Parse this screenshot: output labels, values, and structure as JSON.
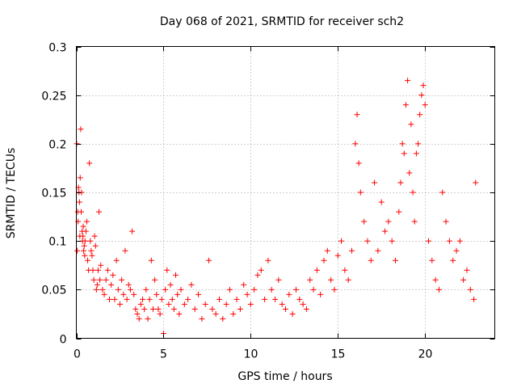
{
  "chart_data": {
    "type": "scatter",
    "title": "Day 068 of 2021, SRMTID for receiver sch2",
    "xlabel": "GPS time / hours",
    "ylabel": "SRMTID / TECUs",
    "xlim": [
      0,
      24
    ],
    "ylim": [
      0,
      0.3
    ],
    "xticks": [
      0,
      5,
      10,
      15,
      20
    ],
    "yticks": [
      0,
      0.05,
      0.1,
      0.15,
      0.2,
      0.25,
      0.3
    ],
    "xtick_labels": [
      "0",
      "5",
      "10",
      "15",
      "20"
    ],
    "ytick_labels": [
      "0",
      "0.05",
      "0.1",
      "0.15",
      "0.2",
      "0.25",
      "0.3"
    ],
    "grid": true,
    "marker": "+",
    "color": "#ff0000",
    "series": [
      {
        "name": "SRMTID",
        "x": [
          0.02,
          0.05,
          0.08,
          0.1,
          0.12,
          0.15,
          0.18,
          0.2,
          0.22,
          0.25,
          0.28,
          0.3,
          0.33,
          0.35,
          0.38,
          0.4,
          0.42,
          0.45,
          0.48,
          0.5,
          0.55,
          0.6,
          0.65,
          0.7,
          0.75,
          0.8,
          0.85,
          0.9,
          0.95,
          1.0,
          1.05,
          1.1,
          1.15,
          1.2,
          1.25,
          1.3,
          1.35,
          1.4,
          1.5,
          1.6,
          1.7,
          1.8,
          1.9,
          2.0,
          2.1,
          2.2,
          2.3,
          2.4,
          2.5,
          2.6,
          2.7,
          2.8,
          2.9,
          3.0,
          3.1,
          3.2,
          3.3,
          3.4,
          3.5,
          3.6,
          3.7,
          3.8,
          3.9,
          4.0,
          4.1,
          4.2,
          4.3,
          4.4,
          4.5,
          4.6,
          4.7,
          4.8,
          4.9,
          5.0,
          5.1,
          5.2,
          5.3,
          5.4,
          5.5,
          5.6,
          5.7,
          5.8,
          5.9,
          6.0,
          6.2,
          6.4,
          6.6,
          6.8,
          7.0,
          7.2,
          7.4,
          7.6,
          7.8,
          8.0,
          8.2,
          8.4,
          8.6,
          8.8,
          9.0,
          9.2,
          9.4,
          9.6,
          9.8,
          10.0,
          10.2,
          10.4,
          10.6,
          10.8,
          11.0,
          11.2,
          11.4,
          11.6,
          11.8,
          12.0,
          12.2,
          12.4,
          12.6,
          12.8,
          13.0,
          13.2,
          13.4,
          13.6,
          13.8,
          14.0,
          14.2,
          14.4,
          14.6,
          14.8,
          15.0,
          15.2,
          15.4,
          15.6,
          15.8,
          16.0,
          16.1,
          16.2,
          16.3,
          16.5,
          16.7,
          16.9,
          17.1,
          17.3,
          17.5,
          17.7,
          17.9,
          18.1,
          18.3,
          18.5,
          18.6,
          18.7,
          18.8,
          18.9,
          19.0,
          19.1,
          19.2,
          19.3,
          19.4,
          19.5,
          19.6,
          19.7,
          19.8,
          19.9,
          20.0,
          20.2,
          20.4,
          20.6,
          20.8,
          21.0,
          21.2,
          21.4,
          21.6,
          21.8,
          22.0,
          22.2,
          22.4,
          22.6,
          22.8,
          22.9
        ],
        "y": [
          0.2,
          0.09,
          0.13,
          0.12,
          0.155,
          0.15,
          0.14,
          0.105,
          0.165,
          0.215,
          0.13,
          0.15,
          0.11,
          0.1,
          0.105,
          0.115,
          0.09,
          0.095,
          0.085,
          0.1,
          0.11,
          0.12,
          0.08,
          0.07,
          0.18,
          0.1,
          0.09,
          0.085,
          0.07,
          0.06,
          0.105,
          0.095,
          0.05,
          0.055,
          0.07,
          0.13,
          0.06,
          0.075,
          0.05,
          0.045,
          0.06,
          0.07,
          0.04,
          0.055,
          0.065,
          0.04,
          0.08,
          0.05,
          0.035,
          0.06,
          0.045,
          0.09,
          0.04,
          0.055,
          0.05,
          0.11,
          0.045,
          0.03,
          0.025,
          0.02,
          0.035,
          0.04,
          0.03,
          0.05,
          0.02,
          0.04,
          0.08,
          0.03,
          0.06,
          0.045,
          0.03,
          0.025,
          0.04,
          0.005,
          0.05,
          0.07,
          0.035,
          0.055,
          0.04,
          0.03,
          0.065,
          0.045,
          0.025,
          0.05,
          0.035,
          0.04,
          0.055,
          0.03,
          0.045,
          0.02,
          0.035,
          0.08,
          0.03,
          0.025,
          0.04,
          0.02,
          0.035,
          0.05,
          0.025,
          0.04,
          0.03,
          0.055,
          0.045,
          0.035,
          0.05,
          0.065,
          0.07,
          0.04,
          0.08,
          0.05,
          0.04,
          0.06,
          0.035,
          0.03,
          0.045,
          0.025,
          0.05,
          0.04,
          0.035,
          0.03,
          0.06,
          0.05,
          0.07,
          0.045,
          0.08,
          0.09,
          0.06,
          0.05,
          0.085,
          0.1,
          0.07,
          0.06,
          0.09,
          0.2,
          0.23,
          0.18,
          0.15,
          0.12,
          0.1,
          0.08,
          0.16,
          0.09,
          0.14,
          0.11,
          0.12,
          0.1,
          0.08,
          0.13,
          0.16,
          0.2,
          0.19,
          0.24,
          0.265,
          0.17,
          0.22,
          0.15,
          0.12,
          0.19,
          0.2,
          0.23,
          0.25,
          0.26,
          0.24,
          0.1,
          0.08,
          0.06,
          0.05,
          0.15,
          0.12,
          0.1,
          0.08,
          0.09,
          0.1,
          0.06,
          0.07,
          0.05,
          0.04,
          0.16
        ]
      }
    ]
  }
}
